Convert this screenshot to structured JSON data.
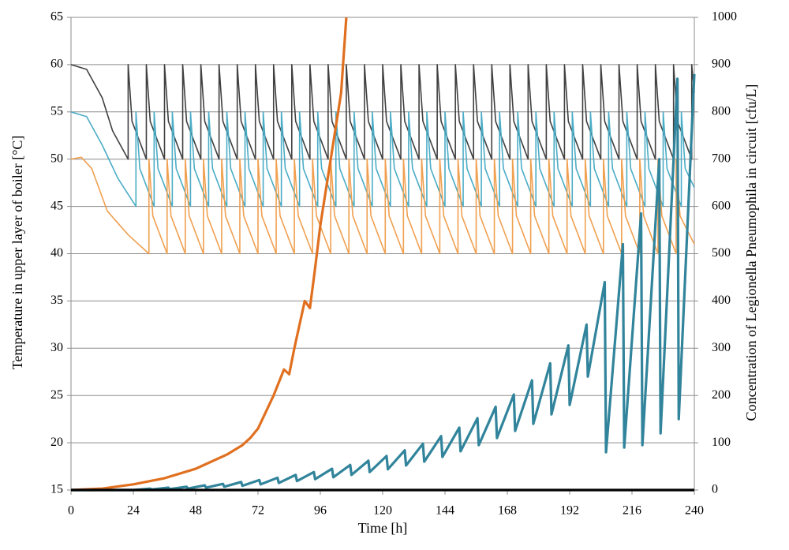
{
  "chart_data": {
    "type": "line",
    "xlabel": "Time [h]",
    "ylabel": "Temperature in upper layer of boiler [°C]",
    "y2label": "Concentration of Legionella Pneumophila in circuit [cfu/L]",
    "xlim": [
      0,
      240
    ],
    "xticks": [
      0,
      24,
      48,
      72,
      96,
      120,
      144,
      168,
      192,
      216,
      240
    ],
    "ylim": [
      15,
      65
    ],
    "yticks": [
      15,
      20,
      25,
      30,
      35,
      40,
      45,
      50,
      55,
      60,
      65
    ],
    "y2lim": [
      0,
      1000
    ],
    "y2ticks": [
      0,
      100,
      200,
      300,
      400,
      500,
      600,
      700,
      800,
      900,
      1000
    ],
    "grid": true,
    "series": [
      {
        "color": "#404040",
        "x": [
          0,
          6,
          12,
          16,
          22,
          22,
          23.5,
          29,
          29,
          30.5,
          36,
          36,
          37.5,
          43,
          43,
          44.5,
          50,
          50,
          51.5,
          57,
          57,
          58.5,
          64,
          64,
          65.5,
          71,
          71,
          72.5,
          78,
          78,
          79.5,
          85,
          85,
          86.5,
          92,
          92,
          93.5,
          99,
          99,
          100.5,
          106,
          106,
          107.5,
          113,
          113,
          114.5,
          120,
          120,
          121.5,
          127,
          127,
          128.5,
          134,
          134,
          135.5,
          141,
          141,
          142.5,
          148,
          148,
          149.5,
          155,
          155,
          156.5,
          162,
          162,
          163.5,
          169,
          169,
          170.5,
          176,
          176,
          177.5,
          183,
          183,
          184.5,
          190,
          190,
          191.5,
          197,
          197,
          198.5,
          204,
          204,
          205.5,
          211,
          211,
          212.5,
          218,
          218,
          219.5,
          225,
          225,
          226.5,
          232,
          232,
          233.5,
          239,
          239,
          240
        ],
        "values": [
          60,
          59.5,
          56.5,
          53,
          50,
          60,
          54,
          50,
          60,
          54,
          50,
          60,
          54,
          50,
          60,
          54,
          50,
          60,
          54,
          50,
          60,
          54,
          50,
          60,
          54,
          50,
          60,
          54,
          50,
          60,
          54,
          50,
          60,
          54,
          50,
          60,
          54,
          50,
          60,
          54,
          50,
          60,
          54,
          50,
          60,
          54,
          50,
          60,
          54,
          50,
          60,
          54,
          50,
          60,
          54,
          50,
          60,
          54,
          50,
          60,
          54,
          50,
          60,
          54,
          50,
          60,
          54,
          50,
          60,
          54,
          50,
          60,
          54,
          50,
          60,
          54,
          50,
          60,
          54,
          50,
          60,
          54,
          50,
          60,
          54,
          50,
          60,
          54,
          50,
          60,
          54,
          50,
          60,
          54,
          50,
          60,
          54,
          50,
          60,
          57
        ]
      },
      {
        "color": "#4bacc6",
        "x": [
          0,
          6,
          12,
          18,
          25,
          25,
          26.5,
          32,
          32,
          33.5,
          39,
          39,
          40.5,
          46,
          46,
          47.5,
          53,
          53,
          54.5,
          60,
          60,
          61.5,
          67,
          67,
          68.5,
          74,
          74,
          75.5,
          81,
          81,
          82.5,
          88,
          88,
          89.5,
          95,
          95,
          96.5,
          102,
          102,
          103.5,
          109,
          109,
          110.5,
          116,
          116,
          117.5,
          123,
          123,
          124.5,
          130,
          130,
          131.5,
          137,
          137,
          138.5,
          144,
          144,
          145.5,
          151,
          151,
          152.5,
          158,
          158,
          159.5,
          165,
          165,
          166.5,
          172,
          172,
          173.5,
          179,
          179,
          180.5,
          186,
          186,
          187.5,
          193,
          193,
          194.5,
          200,
          200,
          201.5,
          207,
          207,
          208.5,
          214,
          214,
          215.5,
          221,
          221,
          222.5,
          228,
          228,
          229.5,
          235,
          235,
          236.5,
          240
        ],
        "values": [
          55,
          54.5,
          51.5,
          48,
          45,
          55,
          49,
          45,
          55,
          49,
          45,
          55,
          49,
          45,
          55,
          49,
          45,
          55,
          49,
          45,
          55,
          49,
          45,
          55,
          49,
          45,
          55,
          49,
          45,
          55,
          49,
          45,
          55,
          49,
          45,
          55,
          49,
          45,
          55,
          49,
          45,
          55,
          49,
          45,
          55,
          49,
          45,
          55,
          49,
          45,
          55,
          49,
          45,
          55,
          49,
          45,
          55,
          49,
          45,
          55,
          49,
          45,
          55,
          49,
          45,
          55,
          49,
          45,
          55,
          49,
          45,
          55,
          49,
          45,
          55,
          49,
          45,
          55,
          49,
          45,
          55,
          49,
          45,
          55,
          49,
          45,
          55,
          49,
          45,
          55,
          49,
          45,
          55,
          49,
          45,
          55,
          49,
          47
        ]
      },
      {
        "color": "#f0a050",
        "x": [
          0,
          4,
          8,
          14,
          22,
          30,
          30,
          31.5,
          37,
          37,
          38.5,
          44,
          44,
          45.5,
          51,
          51,
          52.5,
          58,
          58,
          59.5,
          65,
          65,
          66.5,
          72,
          72,
          73.5,
          79,
          79,
          80.5,
          86,
          86,
          87.5,
          93,
          93,
          94.5,
          100,
          100,
          101.5,
          107,
          107,
          108.5,
          114,
          114,
          115.5,
          121,
          121,
          122.5,
          128,
          128,
          129.5,
          135,
          135,
          136.5,
          142,
          142,
          143.5,
          149,
          149,
          150.5,
          156,
          156,
          157.5,
          163,
          163,
          164.5,
          170,
          170,
          171.5,
          177,
          177,
          178.5,
          184,
          184,
          185.5,
          191,
          191,
          192.5,
          198,
          198,
          199.5,
          205,
          205,
          206.5,
          212,
          212,
          213.5,
          219,
          219,
          220.5,
          226,
          226,
          227.5,
          233,
          233,
          234.5,
          240
        ],
        "values": [
          50,
          50.2,
          49,
          44.5,
          42,
          40,
          50,
          44,
          40,
          50,
          44,
          40,
          50,
          44,
          40,
          50,
          44,
          40,
          50,
          44,
          40,
          50,
          44,
          40,
          50,
          44,
          40,
          50,
          44,
          40,
          50,
          44,
          40,
          50,
          44,
          40,
          50,
          44,
          40,
          50,
          44,
          40,
          50,
          44,
          40,
          50,
          44,
          40,
          50,
          44,
          40,
          50,
          44,
          40,
          50,
          44,
          40,
          50,
          44,
          40,
          50,
          44,
          40,
          50,
          44,
          40,
          50,
          44,
          40,
          50,
          44,
          40,
          50,
          44,
          40,
          50,
          44,
          40,
          50,
          44,
          40,
          50,
          44,
          40,
          50,
          44,
          40,
          50,
          44,
          40,
          50,
          44,
          40,
          50,
          44,
          41
        ]
      },
      {
        "color": "#e07020",
        "axis": "y2",
        "x": [
          0,
          12,
          24,
          36,
          48,
          60,
          66,
          69,
          72,
          78,
          82,
          84,
          86,
          90,
          92,
          94,
          96,
          100,
          102,
          104,
          106
        ],
        "values": [
          0,
          3,
          12,
          25,
          45,
          75,
          95,
          110,
          130,
          200,
          255,
          245,
          300,
          400,
          385,
          470,
          560,
          700,
          770,
          840,
          1000
        ]
      },
      {
        "color": "#31849b",
        "axis": "y2",
        "x": [
          0,
          24,
          30.5,
          31,
          37.5,
          38,
          44.5,
          45,
          51.5,
          52,
          58.5,
          59,
          65.5,
          66,
          72.5,
          73,
          79.5,
          80,
          86.5,
          87,
          93.5,
          94,
          100.5,
          101,
          107.5,
          108,
          114.5,
          115,
          121.5,
          122,
          128.5,
          129,
          135.5,
          136,
          142.5,
          143,
          149.5,
          150,
          156.5,
          157,
          163.5,
          164,
          170.5,
          171,
          177.5,
          178,
          184.5,
          185,
          191.5,
          192,
          198.5,
          199,
          205.5,
          206,
          212.5,
          213,
          219.5,
          220,
          226.5,
          227,
          233.5,
          234,
          240
        ],
        "values": [
          0,
          0,
          3,
          1,
          5,
          2,
          7,
          3,
          10,
          5,
          13,
          7,
          17,
          9,
          21,
          12,
          26,
          15,
          32,
          19,
          38,
          23,
          45,
          27,
          53,
          32,
          62,
          38,
          72,
          44,
          84,
          52,
          98,
          60,
          114,
          70,
          132,
          82,
          152,
          95,
          176,
          110,
          202,
          125,
          232,
          140,
          268,
          160,
          306,
          180,
          350,
          240,
          440,
          80,
          520,
          90,
          585,
          95,
          700,
          120,
          870,
          150,
          880
        ]
      },
      {
        "color": "#000000",
        "axis": "y2",
        "x": [
          0,
          240
        ],
        "values": [
          0,
          0
        ]
      }
    ]
  }
}
